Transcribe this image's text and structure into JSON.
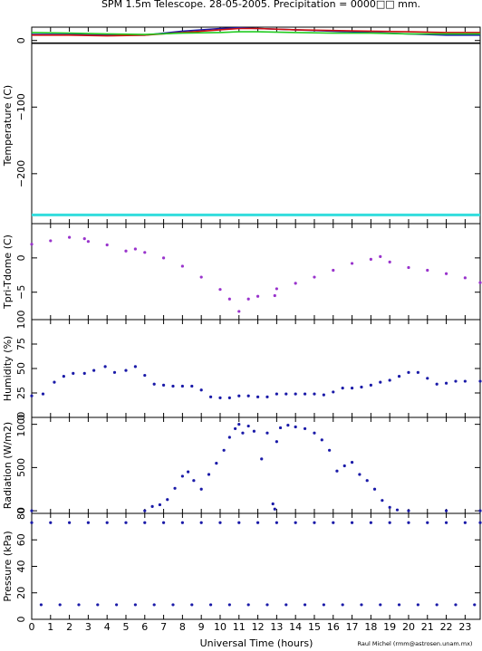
{
  "title": "SPM 1.5m Telescope. 28-05-2005. Precipitation = 0000□□ mm.",
  "xlabel": "Universal Time (hours)",
  "credit": "Raul Michel (rmm@astrosen.unam.mx)",
  "x_ticks": [
    0,
    1,
    2,
    3,
    4,
    5,
    6,
    7,
    8,
    9,
    10,
    11,
    12,
    13,
    14,
    15,
    16,
    17,
    18,
    19,
    20,
    21,
    22,
    23
  ],
  "xlim": [
    0,
    23.8
  ],
  "colors": {
    "blue": "#1a1aa8",
    "red": "#cc1111",
    "green": "#22cc22",
    "black": "#000000",
    "cyan": "#33dddd",
    "purple": "#9933cc",
    "navy": "#1a1aa8"
  },
  "chart_data": [
    {
      "type": "line",
      "ylabel": "Temperature (C)",
      "ylim": [
        -275,
        20
      ],
      "y_ticks": [
        0,
        -100,
        -200
      ],
      "series": [
        {
          "color": "blue",
          "x": [
            0,
            2,
            4,
            6,
            8,
            10,
            11,
            12,
            14,
            16,
            18,
            20,
            22,
            23.8
          ],
          "y": [
            9,
            9,
            8,
            8,
            14,
            18,
            19,
            18,
            16,
            14,
            12,
            10,
            8,
            8
          ]
        },
        {
          "color": "red",
          "x": [
            0,
            2,
            4,
            6,
            8,
            10,
            11,
            12,
            14,
            16,
            18,
            20,
            22,
            23.8
          ],
          "y": [
            8,
            8,
            7,
            8,
            12,
            16,
            18,
            18,
            16,
            15,
            14,
            13,
            12,
            12
          ]
        },
        {
          "color": "green",
          "x": [
            0,
            2,
            4,
            6,
            8,
            10,
            11,
            12,
            14,
            16,
            18,
            20,
            22,
            23.8
          ],
          "y": [
            12,
            11,
            10,
            9,
            11,
            12,
            13,
            13,
            12,
            11,
            11,
            10,
            10,
            10
          ]
        },
        {
          "color": "black",
          "x": [
            0,
            23.8
          ],
          "y": [
            -4,
            -4
          ]
        },
        {
          "color": "cyan",
          "x": [
            0,
            23.8
          ],
          "y": [
            -262,
            -262
          ]
        }
      ]
    },
    {
      "type": "scatter",
      "ylabel": "Tpri-Tdome (C)",
      "ylim": [
        -9,
        5
      ],
      "y_ticks": [
        0,
        -5
      ],
      "series": [
        {
          "color": "purple",
          "x": [
            0,
            1,
            2,
            2.8,
            3,
            4,
            5,
            5.5,
            6,
            7,
            8,
            9,
            10,
            10.5,
            11,
            11.5,
            12,
            12.9,
            13,
            14,
            15,
            16,
            17,
            18,
            18.5,
            19,
            20,
            21,
            22,
            23,
            23.8
          ],
          "y": [
            2.0,
            2.5,
            3.0,
            2.8,
            2.4,
            1.9,
            1.0,
            1.3,
            0.8,
            0,
            -1.2,
            -2.8,
            -4.6,
            -6.0,
            -7.8,
            -6.0,
            -5.6,
            -5.5,
            -4.5,
            -3.7,
            -2.8,
            -1.8,
            -0.8,
            -0.2,
            0.2,
            -0.6,
            -1.4,
            -1.8,
            -2.3,
            -2.9,
            -3.6
          ]
        }
      ]
    },
    {
      "type": "scatter",
      "ylabel": "Humidity (%)",
      "ylim": [
        0,
        100
      ],
      "y_ticks": [
        0,
        25,
        50,
        75,
        100
      ],
      "series": [
        {
          "color": "navy",
          "x": [
            0,
            0.6,
            1.2,
            1.7,
            2.2,
            2.8,
            3.3,
            3.9,
            4.4,
            5,
            5.5,
            6,
            6.5,
            7,
            7.5,
            8,
            8.5,
            9,
            9.5,
            10,
            10.5,
            11,
            11.5,
            12,
            12.5,
            13,
            13.5,
            14,
            14.5,
            15,
            15.5,
            16,
            16.5,
            17,
            17.5,
            18,
            18.5,
            19,
            19.5,
            20,
            20.5,
            21,
            21.5,
            22,
            22.5,
            23,
            23.8
          ],
          "y": [
            22,
            24,
            36,
            42,
            45,
            45,
            48,
            52,
            46,
            48,
            52,
            43,
            34,
            33,
            32,
            32,
            32,
            28,
            21,
            20,
            20,
            22,
            22,
            21,
            21,
            24,
            24,
            24,
            24,
            24,
            23,
            26,
            30,
            30,
            31,
            33,
            36,
            38,
            42,
            46,
            46,
            40,
            34,
            35,
            37,
            37,
            37
          ]
        }
      ]
    },
    {
      "type": "scatter",
      "ylabel": "Radiation (W/m2)",
      "ylim": [
        -30,
        1080
      ],
      "y_ticks": [
        0,
        500,
        1000
      ],
      "series": [
        {
          "color": "navy",
          "x": [
            0,
            6,
            6.4,
            6.8,
            7.2,
            7.6,
            8,
            8.3,
            8.6,
            9,
            9.4,
            9.8,
            10.2,
            10.5,
            10.8,
            11,
            11.2,
            11.5,
            11.8,
            12.2,
            12.5,
            12.8,
            12.9,
            13,
            13.2,
            13.6,
            14,
            14.5,
            15,
            15.4,
            15.8,
            16.2,
            16.6,
            17,
            17.4,
            17.8,
            18.2,
            18.6,
            19,
            19.4,
            20,
            22,
            23.8
          ],
          "y": [
            0,
            0,
            50,
            70,
            130,
            260,
            400,
            450,
            350,
            250,
            420,
            550,
            700,
            850,
            950,
            1000,
            900,
            980,
            920,
            600,
            900,
            80,
            20,
            800,
            960,
            990,
            970,
            950,
            900,
            820,
            700,
            460,
            520,
            560,
            420,
            350,
            250,
            120,
            40,
            10,
            0,
            0,
            0
          ]
        }
      ]
    },
    {
      "type": "scatter",
      "ylabel": "Pressure (kPa)",
      "ylim": [
        0,
        80
      ],
      "y_ticks": [
        0,
        20,
        40,
        60,
        80
      ],
      "series": [
        {
          "color": "navy",
          "x": [
            0,
            1,
            2,
            3,
            4,
            5,
            6,
            7,
            8,
            9,
            10,
            11,
            12,
            13,
            14,
            15,
            16,
            17,
            18,
            19,
            20,
            21,
            22,
            23,
            23.8
          ],
          "y": [
            73,
            73,
            73,
            73,
            73,
            73,
            73,
            73,
            73,
            73,
            73,
            73,
            73,
            73,
            73,
            73,
            73,
            73,
            73,
            73,
            73,
            73,
            73,
            73,
            73
          ]
        },
        {
          "color": "navy",
          "x": [
            0.5,
            1.5,
            2.5,
            3.5,
            4.5,
            5.5,
            6.5,
            7.5,
            8.5,
            9.5,
            10.5,
            11.5,
            12.5,
            13.5,
            14.5,
            15.5,
            16.5,
            17.5,
            18.5,
            19.5,
            20.5,
            21.5,
            22.5,
            23.5
          ],
          "y": [
            11,
            11,
            11,
            11,
            11,
            11,
            11,
            11,
            11,
            11,
            11,
            11,
            11,
            11,
            11,
            11,
            11,
            11,
            11,
            11,
            11,
            11,
            11,
            11
          ]
        }
      ]
    }
  ]
}
